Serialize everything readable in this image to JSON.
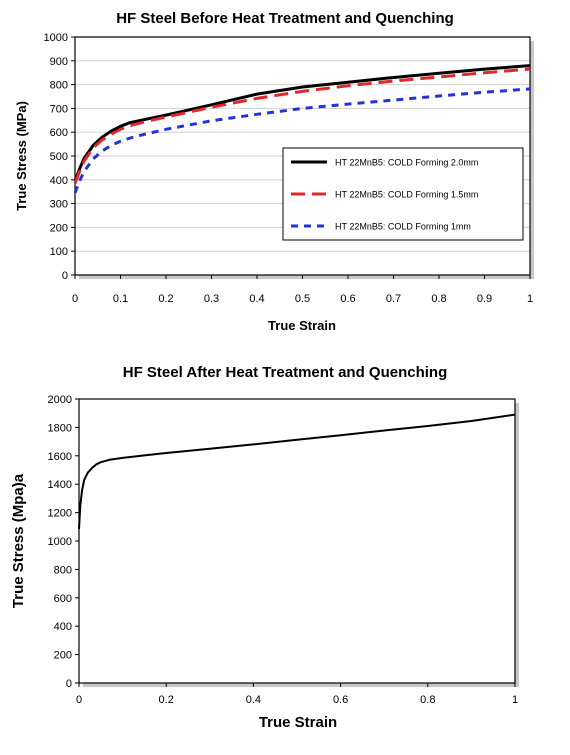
{
  "colors": {
    "black": "#000000",
    "red": "#e0282a",
    "blue": "#2233dd",
    "grid": "#d0d0d0",
    "frame_shadow": "#9a9a9a"
  },
  "chart_data": [
    {
      "type": "line",
      "title": "HF Steel Before Heat Treatment and Quenching",
      "xlabel": "True Strain",
      "ylabel": "True Stress (MPa)",
      "xlim": [
        0,
        1
      ],
      "ylim": [
        0,
        1000
      ],
      "grid": true,
      "legend_position": "center-right",
      "xticks": [
        "0",
        "0.1",
        "0.2",
        "0.3",
        "0.4",
        "0.5",
        "0.6",
        "0.7",
        "0.8",
        "0.9",
        "1"
      ],
      "yticks": [
        "0",
        "100",
        "200",
        "300",
        "400",
        "500",
        "600",
        "700",
        "800",
        "900",
        "1000"
      ],
      "series": [
        {
          "name": "HT 22MnB5: COLD Forming 2.0mm",
          "color": "#000000",
          "style": "solid",
          "x": [
            0,
            0.01,
            0.02,
            0.04,
            0.06,
            0.08,
            0.1,
            0.12,
            0.15,
            0.2,
            0.3,
            0.4,
            0.5,
            0.6,
            0.7,
            0.8,
            0.9,
            1.0
          ],
          "y": [
            395,
            445,
            490,
            545,
            580,
            605,
            625,
            640,
            652,
            672,
            715,
            760,
            790,
            810,
            830,
            848,
            865,
            880
          ]
        },
        {
          "name": "HT 22MnB5: COLD Forming 1.5mm",
          "color": "#e0282a",
          "style": "dashed",
          "x": [
            0,
            0.01,
            0.02,
            0.04,
            0.06,
            0.08,
            0.1,
            0.12,
            0.15,
            0.2,
            0.3,
            0.4,
            0.5,
            0.6,
            0.7,
            0.8,
            0.9,
            1.0
          ],
          "y": [
            385,
            435,
            478,
            535,
            568,
            592,
            612,
            627,
            642,
            664,
            705,
            742,
            772,
            795,
            815,
            832,
            850,
            865
          ]
        },
        {
          "name": "HT 22MnB5: COLD Forming 1mm",
          "color": "#2233dd",
          "style": "dotted",
          "x": [
            0,
            0.01,
            0.02,
            0.04,
            0.06,
            0.08,
            0.1,
            0.12,
            0.15,
            0.2,
            0.3,
            0.4,
            0.5,
            0.6,
            0.7,
            0.8,
            0.9,
            1.0
          ],
          "y": [
            345,
            395,
            435,
            488,
            522,
            545,
            562,
            575,
            590,
            612,
            648,
            675,
            700,
            718,
            735,
            752,
            768,
            782
          ]
        }
      ]
    },
    {
      "type": "line",
      "title": "HF Steel After Heat Treatment and Quenching",
      "xlabel": "True Strain",
      "ylabel": "True Stress (Mpa)a",
      "xlim": [
        0,
        1
      ],
      "ylim": [
        0,
        2000
      ],
      "grid": false,
      "xticks": [
        "0",
        "0.2",
        "0.4",
        "0.6",
        "0.8",
        "1"
      ],
      "yticks": [
        "0",
        "200",
        "400",
        "600",
        "800",
        "1000",
        "1200",
        "1400",
        "1600",
        "1800",
        "2000"
      ],
      "series": [
        {
          "color": "#000000",
          "style": "solid",
          "x": [
            0,
            0.003,
            0.007,
            0.012,
            0.02,
            0.03,
            0.04,
            0.05,
            0.07,
            0.1,
            0.15,
            0.2,
            0.3,
            0.4,
            0.5,
            0.6,
            0.7,
            0.8,
            0.9,
            1.0
          ],
          "y": [
            1085,
            1250,
            1360,
            1430,
            1480,
            1515,
            1540,
            1555,
            1572,
            1585,
            1603,
            1620,
            1650,
            1680,
            1713,
            1745,
            1778,
            1810,
            1845,
            1890
          ]
        }
      ]
    }
  ]
}
